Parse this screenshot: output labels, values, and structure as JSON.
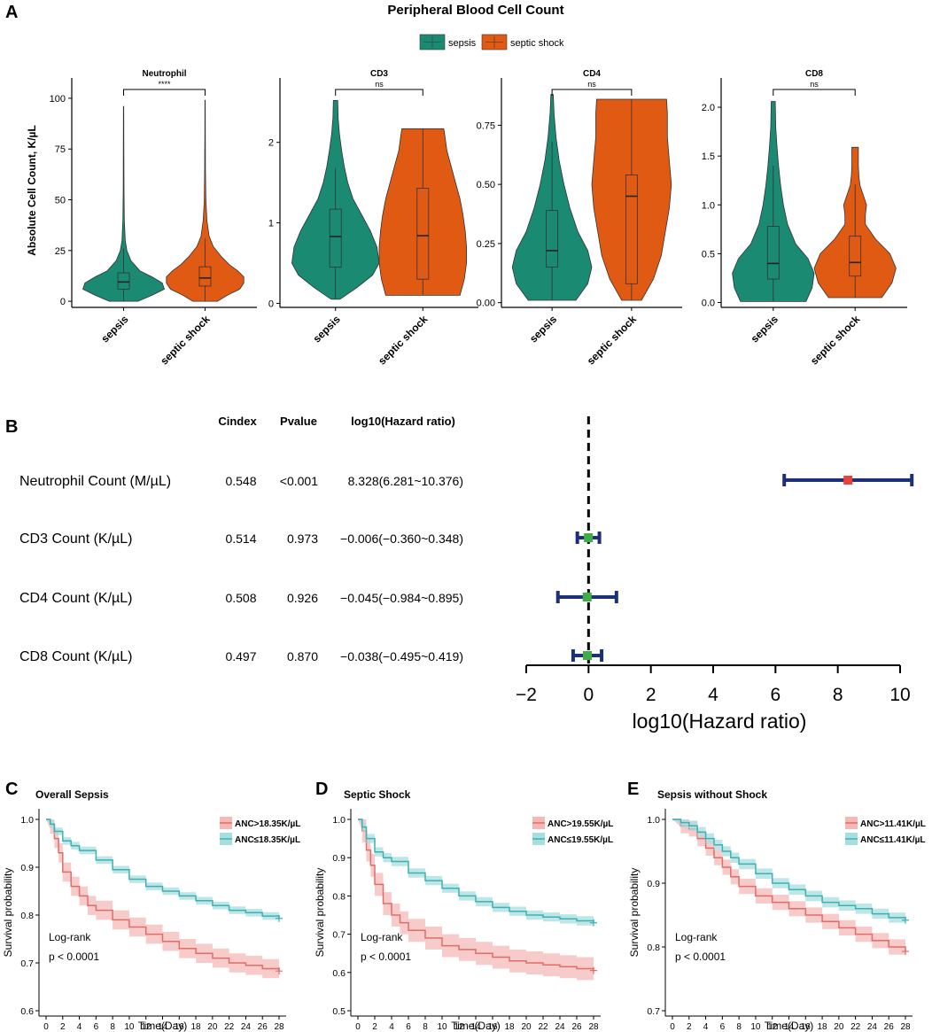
{
  "colors": {
    "sepsis": "#1a8a73",
    "shock": "#e05a14",
    "ci_line": "#1c2f7a",
    "point_red": "#e8423b",
    "point_green": "#3fae49",
    "km_red": "#e06d68",
    "km_red_band": "#f4b9b7",
    "km_teal": "#3ab2b5",
    "km_teal_band": "#a9dedf"
  },
  "panel_a": {
    "letter": "A",
    "title": "Peripheral Blood Cell Count",
    "legend": [
      "sepsis",
      "septic shock"
    ],
    "ylabel": "Absolute Cell Count, K/µL"
  },
  "panel_b": {
    "letter": "B",
    "headers": [
      "Cindex",
      "Pvalue",
      "log10(Hazard ratio)"
    ],
    "xlabel": "log10(Hazard ratio)"
  },
  "panel_labels": {
    "C": "C",
    "C_title": "Overall Sepsis",
    "D": "D",
    "D_title": "Septic Shock",
    "E": "E",
    "E_title": "Sepsis without Shock"
  },
  "chart_data": [
    {
      "type": "violin",
      "title": "Neutrophil",
      "categories": [
        "sepsis",
        "septic shock"
      ],
      "ylim": [
        -3,
        110
      ],
      "yticks": [
        0,
        25,
        50,
        75,
        100
      ],
      "significance": "****",
      "series": [
        {
          "name": "sepsis",
          "min": 0,
          "max": 96,
          "q1": 6,
          "median": 9.5,
          "q3": 14,
          "whisker_low": 0,
          "whisker_high": 26,
          "density": [
            [
              0,
              0.35
            ],
            [
              3,
              0.7
            ],
            [
              6,
              1.0
            ],
            [
              9,
              0.95
            ],
            [
              12,
              0.7
            ],
            [
              15,
              0.4
            ],
            [
              20,
              0.18
            ],
            [
              25,
              0.08
            ],
            [
              30,
              0.04
            ],
            [
              40,
              0.018
            ],
            [
              55,
              0.01
            ],
            [
              75,
              0.007
            ],
            [
              96,
              0.005
            ]
          ]
        },
        {
          "name": "septic shock",
          "min": 0,
          "max": 99,
          "q1": 7.5,
          "median": 11.5,
          "q3": 17,
          "whisker_low": 0,
          "whisker_high": 31,
          "density": [
            [
              0,
              0.3
            ],
            [
              3,
              0.55
            ],
            [
              6,
              0.85
            ],
            [
              9,
              0.95
            ],
            [
              12,
              0.95
            ],
            [
              15,
              0.8
            ],
            [
              18,
              0.6
            ],
            [
              22,
              0.4
            ],
            [
              27,
              0.2
            ],
            [
              32,
              0.1
            ],
            [
              40,
              0.045
            ],
            [
              50,
              0.02
            ],
            [
              65,
              0.01
            ],
            [
              80,
              0.007
            ],
            [
              99,
              0.005
            ]
          ]
        }
      ]
    },
    {
      "type": "violin",
      "title": "CD3",
      "categories": [
        "sepsis",
        "septic shock"
      ],
      "ylim": [
        -0.05,
        2.8
      ],
      "yticks": [
        0,
        1,
        2
      ],
      "significance": "ns",
      "series": [
        {
          "name": "sepsis",
          "min": 0.05,
          "max": 2.52,
          "q1": 0.45,
          "median": 0.83,
          "q3": 1.17,
          "whisker_low": 0.05,
          "whisker_high": 1.68,
          "density": [
            [
              0.05,
              0.1
            ],
            [
              0.2,
              0.5
            ],
            [
              0.35,
              0.85
            ],
            [
              0.5,
              1.0
            ],
            [
              0.7,
              0.95
            ],
            [
              0.9,
              0.8
            ],
            [
              1.1,
              0.6
            ],
            [
              1.3,
              0.4
            ],
            [
              1.5,
              0.28
            ],
            [
              1.7,
              0.2
            ],
            [
              1.9,
              0.14
            ],
            [
              2.1,
              0.09
            ],
            [
              2.3,
              0.06
            ],
            [
              2.52,
              0.05
            ]
          ]
        },
        {
          "name": "septic shock",
          "min": 0.1,
          "max": 2.17,
          "q1": 0.3,
          "median": 0.84,
          "q3": 1.43,
          "whisker_low": 0.1,
          "whisker_high": 2.17,
          "density": [
            [
              0.1,
              0.85
            ],
            [
              0.3,
              0.95
            ],
            [
              0.5,
              1.0
            ],
            [
              0.7,
              1.0
            ],
            [
              0.9,
              0.97
            ],
            [
              1.1,
              0.92
            ],
            [
              1.3,
              0.85
            ],
            [
              1.5,
              0.75
            ],
            [
              1.7,
              0.65
            ],
            [
              1.9,
              0.55
            ],
            [
              2.1,
              0.5
            ],
            [
              2.17,
              0.48
            ]
          ]
        }
      ]
    },
    {
      "type": "violin",
      "title": "CD4",
      "categories": [
        "sepsis",
        "septic shock"
      ],
      "ylim": [
        -0.02,
        0.95
      ],
      "yticks": [
        0,
        0.25,
        0.5,
        0.75
      ],
      "significance": "ns",
      "series": [
        {
          "name": "sepsis",
          "min": 0.01,
          "max": 0.88,
          "q1": 0.15,
          "median": 0.22,
          "q3": 0.39,
          "whisker_low": 0.01,
          "whisker_high": 0.68,
          "density": [
            [
              0.01,
              0.6
            ],
            [
              0.08,
              0.9
            ],
            [
              0.15,
              1.0
            ],
            [
              0.22,
              0.9
            ],
            [
              0.3,
              0.65
            ],
            [
              0.4,
              0.45
            ],
            [
              0.5,
              0.3
            ],
            [
              0.6,
              0.18
            ],
            [
              0.7,
              0.1
            ],
            [
              0.8,
              0.05
            ],
            [
              0.88,
              0.03
            ]
          ]
        },
        {
          "name": "septic shock",
          "min": 0.01,
          "max": 0.86,
          "q1": 0.08,
          "median": 0.45,
          "q3": 0.54,
          "whisker_low": 0.01,
          "whisker_high": 0.86,
          "density": [
            [
              0.01,
              0.25
            ],
            [
              0.1,
              0.55
            ],
            [
              0.2,
              0.75
            ],
            [
              0.3,
              0.85
            ],
            [
              0.4,
              0.95
            ],
            [
              0.5,
              1.0
            ],
            [
              0.6,
              0.95
            ],
            [
              0.7,
              0.9
            ],
            [
              0.8,
              0.9
            ],
            [
              0.86,
              0.88
            ]
          ]
        }
      ]
    },
    {
      "type": "violin",
      "title": "CD8",
      "categories": [
        "sepsis",
        "septic shock"
      ],
      "ylim": [
        -0.05,
        2.3
      ],
      "yticks": [
        0,
        0.5,
        1.0,
        1.5,
        2.0
      ],
      "significance": "ns",
      "series": [
        {
          "name": "sepsis",
          "min": 0.01,
          "max": 2.06,
          "q1": 0.24,
          "median": 0.4,
          "q3": 0.78,
          "whisker_low": 0.01,
          "whisker_high": 1.4,
          "density": [
            [
              0.01,
              0.8
            ],
            [
              0.15,
              0.95
            ],
            [
              0.3,
              1.0
            ],
            [
              0.45,
              0.85
            ],
            [
              0.6,
              0.55
            ],
            [
              0.8,
              0.35
            ],
            [
              1.0,
              0.25
            ],
            [
              1.2,
              0.18
            ],
            [
              1.4,
              0.13
            ],
            [
              1.6,
              0.09
            ],
            [
              1.8,
              0.06
            ],
            [
              2.06,
              0.05
            ]
          ]
        },
        {
          "name": "septic shock",
          "min": 0.05,
          "max": 1.59,
          "q1": 0.27,
          "median": 0.41,
          "q3": 0.68,
          "whisker_low": 0.05,
          "whisker_high": 1.21,
          "density": [
            [
              0.05,
              0.65
            ],
            [
              0.2,
              0.9
            ],
            [
              0.35,
              1.0
            ],
            [
              0.5,
              0.85
            ],
            [
              0.65,
              0.5
            ],
            [
              0.8,
              0.25
            ],
            [
              0.9,
              0.25
            ],
            [
              1.0,
              0.28
            ],
            [
              1.1,
              0.2
            ],
            [
              1.2,
              0.12
            ],
            [
              1.3,
              0.09
            ],
            [
              1.4,
              0.08
            ],
            [
              1.5,
              0.08
            ],
            [
              1.59,
              0.08
            ]
          ]
        }
      ]
    },
    {
      "type": "forest",
      "xlim": [
        -2,
        10
      ],
      "xticks": [
        -2,
        0,
        2,
        4,
        6,
        8,
        10
      ],
      "rows": [
        {
          "label": "Neutrophil Count (M/µL)",
          "cindex": "0.548",
          "pvalue": "<0.001",
          "hr_text": "8.328(6.281~10.376)",
          "est": 8.328,
          "low": 6.281,
          "high": 10.376,
          "marker": "red"
        },
        {
          "label": "CD3 Count (K/µL)",
          "cindex": "0.514",
          "pvalue": "0.973",
          "hr_text": "−0.006(−0.360~0.348)",
          "est": -0.006,
          "low": -0.36,
          "high": 0.348,
          "marker": "green"
        },
        {
          "label": "CD4 Count (K/µL)",
          "cindex": "0.508",
          "pvalue": "0.926",
          "hr_text": "−0.045(−0.984~0.895)",
          "est": -0.045,
          "low": -0.984,
          "high": 0.895,
          "marker": "green"
        },
        {
          "label": "CD8 Count (K/µL)",
          "cindex": "0.497",
          "pvalue": "0.870",
          "hr_text": "−0.038(−0.495~0.419)",
          "est": -0.038,
          "low": -0.495,
          "high": 0.419,
          "marker": "green"
        }
      ]
    },
    {
      "type": "line",
      "subtype": "kaplan-meier",
      "title": "Overall Sepsis",
      "xlabel": "Time(Day)",
      "ylabel": "Survival probability",
      "xlim": [
        0,
        28
      ],
      "xticks": [
        0,
        2,
        4,
        6,
        8,
        10,
        12,
        14,
        16,
        18,
        20,
        22,
        24,
        26,
        28
      ],
      "ylim": [
        0.6,
        1.0
      ],
      "yticks": [
        0.6,
        0.7,
        0.8,
        0.9,
        1.0
      ],
      "annotation": [
        "Log-rank",
        "p < 0.0001"
      ],
      "series": [
        {
          "name": "ANC>18.35K/µL",
          "color": "red",
          "x": [
            0,
            0.5,
            1,
            1.5,
            2,
            3,
            4,
            5,
            6,
            8,
            10,
            12,
            14,
            16,
            18,
            20,
            22,
            24,
            26,
            28
          ],
          "y": [
            1.0,
            0.99,
            0.96,
            0.93,
            0.89,
            0.86,
            0.84,
            0.82,
            0.81,
            0.79,
            0.775,
            0.76,
            0.745,
            0.73,
            0.72,
            0.71,
            0.7,
            0.695,
            0.688,
            0.683
          ],
          "band": 0.02
        },
        {
          "name": "ANC≤18.35K/µL",
          "color": "teal",
          "x": [
            0,
            0.5,
            1,
            2,
            3,
            4,
            6,
            8,
            10,
            12,
            14,
            16,
            18,
            20,
            22,
            24,
            26,
            28
          ],
          "y": [
            1.0,
            0.99,
            0.975,
            0.955,
            0.945,
            0.935,
            0.915,
            0.895,
            0.875,
            0.86,
            0.85,
            0.84,
            0.83,
            0.82,
            0.81,
            0.805,
            0.798,
            0.793
          ],
          "band": 0.008
        }
      ]
    },
    {
      "type": "line",
      "subtype": "kaplan-meier",
      "title": "Septic Shock",
      "xlabel": "Time(Day)",
      "ylabel": "Survival probability",
      "xlim": [
        0,
        28
      ],
      "xticks": [
        0,
        2,
        4,
        6,
        8,
        10,
        12,
        14,
        16,
        18,
        20,
        22,
        24,
        26,
        28
      ],
      "ylim": [
        0.5,
        1.0
      ],
      "yticks": [
        0.5,
        0.6,
        0.7,
        0.8,
        0.9,
        1.0
      ],
      "annotation": [
        "Log-rank",
        "p < 0.0001"
      ],
      "series": [
        {
          "name": "ANC>19.55K/µL",
          "color": "red",
          "x": [
            0,
            0.5,
            1,
            1.5,
            2,
            3,
            4,
            5,
            6,
            8,
            10,
            12,
            14,
            16,
            18,
            20,
            22,
            24,
            26,
            28
          ],
          "y": [
            1.0,
            0.97,
            0.92,
            0.88,
            0.83,
            0.78,
            0.75,
            0.73,
            0.71,
            0.69,
            0.67,
            0.66,
            0.65,
            0.64,
            0.63,
            0.625,
            0.62,
            0.615,
            0.61,
            0.605
          ],
          "band": 0.03
        },
        {
          "name": "ANC≤19.55K/µL",
          "color": "teal",
          "x": [
            0,
            0.5,
            1,
            2,
            3,
            4,
            6,
            8,
            10,
            12,
            14,
            16,
            18,
            20,
            22,
            24,
            26,
            28
          ],
          "y": [
            1.0,
            0.98,
            0.95,
            0.915,
            0.9,
            0.89,
            0.86,
            0.84,
            0.82,
            0.8,
            0.785,
            0.77,
            0.76,
            0.75,
            0.745,
            0.74,
            0.735,
            0.73
          ],
          "band": 0.012
        }
      ]
    },
    {
      "type": "line",
      "subtype": "kaplan-meier",
      "title": "Sepsis without Shock",
      "xlabel": "Time(Day)",
      "ylabel": "Survival probability",
      "xlim": [
        0,
        28
      ],
      "xticks": [
        0,
        2,
        4,
        6,
        8,
        10,
        12,
        14,
        16,
        18,
        20,
        22,
        24,
        26,
        28
      ],
      "ylim": [
        0.7,
        1.0
      ],
      "yticks": [
        0.7,
        0.8,
        0.9,
        1.0
      ],
      "annotation": [
        "Log-rank",
        "p < 0.0001"
      ],
      "series": [
        {
          "name": "ANC>11.41K/µL",
          "color": "red",
          "x": [
            0,
            1,
            2,
            3,
            4,
            5,
            6,
            7,
            8,
            10,
            12,
            14,
            16,
            18,
            20,
            22,
            24,
            26,
            28
          ],
          "y": [
            1.0,
            0.99,
            0.985,
            0.97,
            0.955,
            0.94,
            0.925,
            0.91,
            0.895,
            0.88,
            0.87,
            0.86,
            0.85,
            0.84,
            0.83,
            0.82,
            0.81,
            0.8,
            0.793
          ],
          "band": 0.012
        },
        {
          "name": "ANC≤11.41K/µL",
          "color": "teal",
          "x": [
            0,
            1,
            2,
            3,
            4,
            5,
            6,
            7,
            8,
            10,
            12,
            14,
            16,
            18,
            20,
            22,
            24,
            26,
            28
          ],
          "y": [
            1.0,
            0.995,
            0.99,
            0.98,
            0.97,
            0.96,
            0.95,
            0.94,
            0.93,
            0.915,
            0.9,
            0.89,
            0.88,
            0.87,
            0.865,
            0.86,
            0.852,
            0.846,
            0.842
          ],
          "band": 0.008
        }
      ]
    }
  ]
}
